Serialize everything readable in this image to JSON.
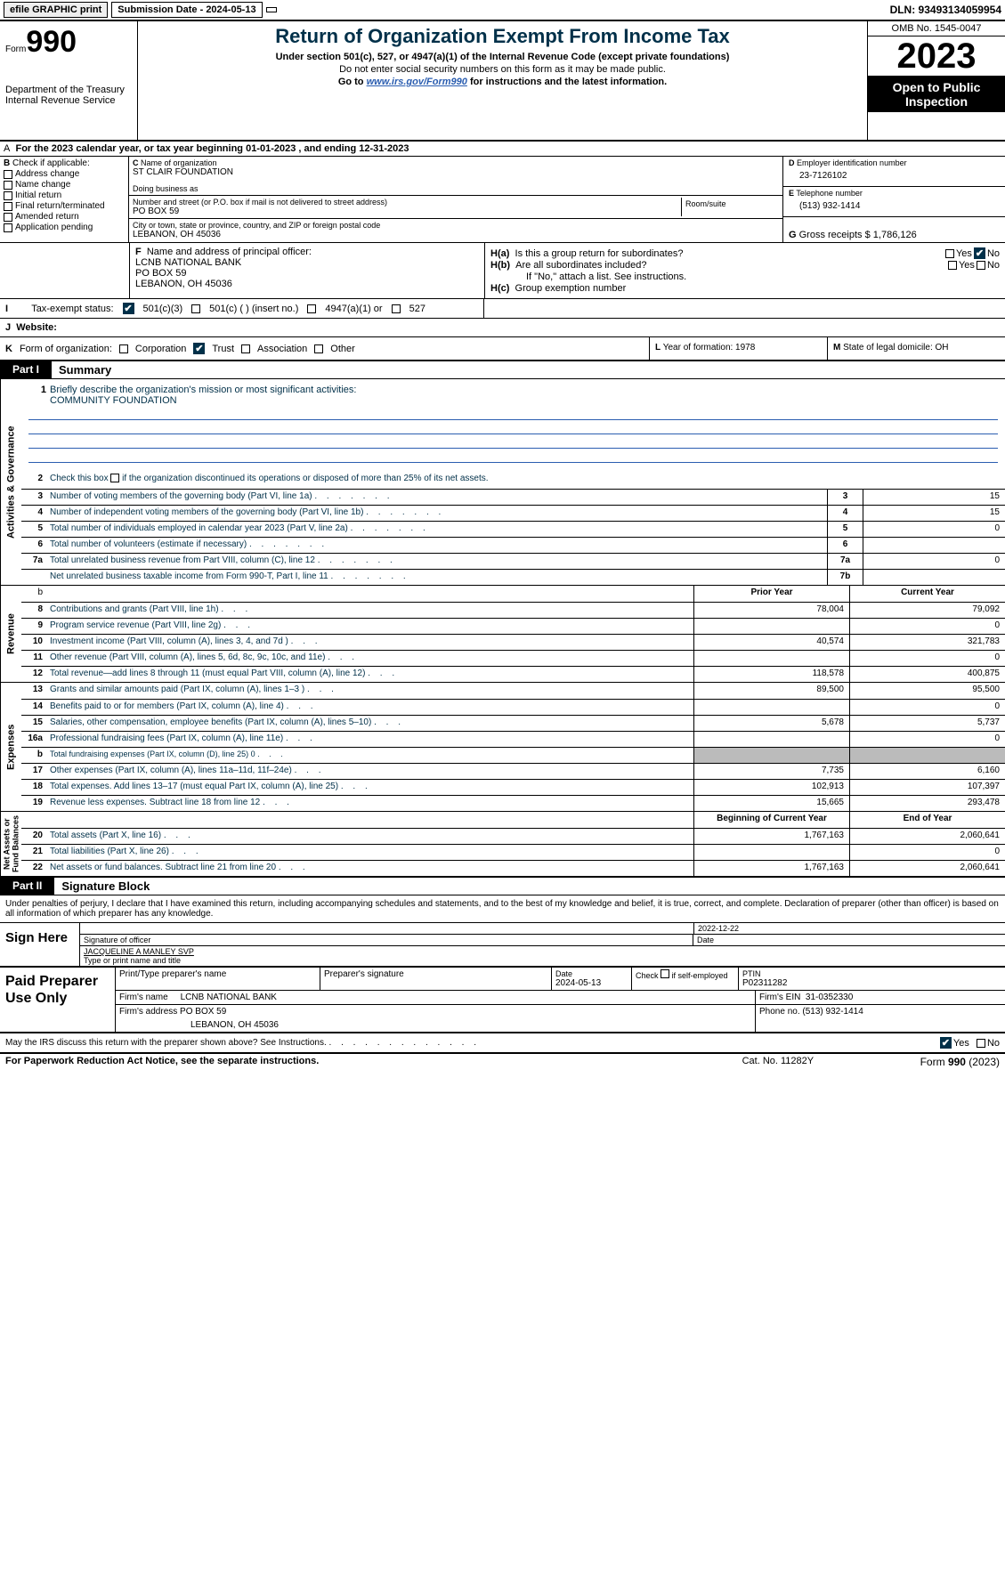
{
  "topbar": {
    "efile": "efile GRAPHIC print",
    "submission": "Submission Date - 2024-05-13",
    "dln": "DLN: 93493134059954"
  },
  "header": {
    "form_label": "Form",
    "form_num": "990",
    "dept": "Department of the Treasury\nInternal Revenue Service",
    "title": "Return of Organization Exempt From Income Tax",
    "sub1": "Under section 501(c), 527, or 4947(a)(1) of the Internal Revenue Code (except private foundations)",
    "sub2": "Do not enter social security numbers on this form as it may be made public.",
    "sub3_pre": "Go to ",
    "sub3_link": "www.irs.gov/Form990",
    "sub3_post": " for instructions and the latest information.",
    "omb": "OMB No. 1545-0047",
    "year": "2023",
    "open": "Open to Public Inspection"
  },
  "period": "For the 2023 calendar year, or tax year beginning 01-01-2023    , and ending 12-31-2023",
  "sectionB": {
    "title": "Check if applicable:",
    "items": [
      "Address change",
      "Name change",
      "Initial return",
      "Final return/terminated",
      "Amended return",
      "Application pending"
    ]
  },
  "sectionC": {
    "name_label": "Name of organization",
    "name": "ST CLAIR FOUNDATION",
    "dba_label": "Doing business as",
    "addr_label": "Number and street (or P.O. box if mail is not delivered to street address)",
    "addr": "PO BOX 59",
    "room_label": "Room/suite",
    "city_label": "City or town, state or province, country, and ZIP or foreign postal code",
    "city": "LEBANON, OH   45036"
  },
  "sectionD": {
    "ein_label": "Employer identification number",
    "ein": "23-7126102",
    "phone_label": "Telephone number",
    "phone": "(513) 932-1414",
    "gross_label": "Gross receipts $",
    "gross": "1,786,126"
  },
  "sectionF": {
    "label": "Name and address of principal officer:",
    "line1": "LCNB NATIONAL BANK",
    "line2": "PO BOX 59",
    "line3": "LEBANON, OH   45036"
  },
  "sectionH": {
    "a": "Is this a group return for subordinates?",
    "b": "Are all subordinates included?",
    "b_note": "If \"No,\" attach a list. See instructions.",
    "c": "Group exemption number"
  },
  "taxexempt": {
    "label": "Tax-exempt status:",
    "opts": [
      "501(c)(3)",
      "501(c) (  ) (insert no.)",
      "4947(a)(1) or",
      "527"
    ]
  },
  "website_label": "Website:",
  "rowK": {
    "label": "Form of organization:",
    "opts": [
      "Corporation",
      "Trust",
      "Association",
      "Other"
    ]
  },
  "rowL": "Year of formation: 1978",
  "rowM": "State of legal domicile: OH",
  "part1": {
    "tab": "Part I",
    "title": "Summary"
  },
  "mission": {
    "label": "Briefly describe the organization's mission or most significant activities:",
    "text": "COMMUNITY FOUNDATION"
  },
  "line2": "Check this box       if the organization discontinued its operations or disposed of more than 25% of its net assets.",
  "gov_rows": [
    {
      "n": "3",
      "d": "Number of voting members of the governing body (Part VI, line 1a)",
      "box": "3",
      "v": "15"
    },
    {
      "n": "4",
      "d": "Number of independent voting members of the governing body (Part VI, line 1b)",
      "box": "4",
      "v": "15"
    },
    {
      "n": "5",
      "d": "Total number of individuals employed in calendar year 2023 (Part V, line 2a)",
      "box": "5",
      "v": "0"
    },
    {
      "n": "6",
      "d": "Total number of volunteers (estimate if necessary)",
      "box": "6",
      "v": ""
    },
    {
      "n": "7a",
      "d": "Total unrelated business revenue from Part VIII, column (C), line 12",
      "box": "7a",
      "v": "0"
    },
    {
      "n": "",
      "d": "Net unrelated business taxable income from Form 990-T, Part I, line 11",
      "box": "7b",
      "v": ""
    }
  ],
  "py_hdr": "Prior Year",
  "cy_hdr": "Current Year",
  "rev_rows": [
    {
      "n": "8",
      "d": "Contributions and grants (Part VIII, line 1h)",
      "p": "78,004",
      "c": "79,092"
    },
    {
      "n": "9",
      "d": "Program service revenue (Part VIII, line 2g)",
      "p": "",
      "c": "0"
    },
    {
      "n": "10",
      "d": "Investment income (Part VIII, column (A), lines 3, 4, and 7d )",
      "p": "40,574",
      "c": "321,783"
    },
    {
      "n": "11",
      "d": "Other revenue (Part VIII, column (A), lines 5, 6d, 8c, 9c, 10c, and 11e)",
      "p": "",
      "c": "0"
    },
    {
      "n": "12",
      "d": "Total revenue—add lines 8 through 11 (must equal Part VIII, column (A), line 12)",
      "p": "118,578",
      "c": "400,875"
    }
  ],
  "exp_rows": [
    {
      "n": "13",
      "d": "Grants and similar amounts paid (Part IX, column (A), lines 1–3 )",
      "p": "89,500",
      "c": "95,500"
    },
    {
      "n": "14",
      "d": "Benefits paid to or for members (Part IX, column (A), line 4)",
      "p": "",
      "c": "0"
    },
    {
      "n": "15",
      "d": "Salaries, other compensation, employee benefits (Part IX, column (A), lines 5–10)",
      "p": "5,678",
      "c": "5,737"
    },
    {
      "n": "16a",
      "d": "Professional fundraising fees (Part IX, column (A), line 11e)",
      "p": "",
      "c": "0"
    },
    {
      "n": "b",
      "d": "Total fundraising expenses (Part IX, column (D), line 25) 0",
      "p": "SHADE",
      "c": "SHADE",
      "small": true
    },
    {
      "n": "17",
      "d": "Other expenses (Part IX, column (A), lines 11a–11d, 11f–24e)",
      "p": "7,735",
      "c": "6,160"
    },
    {
      "n": "18",
      "d": "Total expenses. Add lines 13–17 (must equal Part IX, column (A), line 25)",
      "p": "102,913",
      "c": "107,397"
    },
    {
      "n": "19",
      "d": "Revenue less expenses. Subtract line 18 from line 12",
      "p": "15,665",
      "c": "293,478"
    }
  ],
  "na_hdr_b": "Beginning of Current Year",
  "na_hdr_e": "End of Year",
  "na_rows": [
    {
      "n": "20",
      "d": "Total assets (Part X, line 16)",
      "p": "1,767,163",
      "c": "2,060,641"
    },
    {
      "n": "21",
      "d": "Total liabilities (Part X, line 26)",
      "p": "",
      "c": "0"
    },
    {
      "n": "22",
      "d": "Net assets or fund balances. Subtract line 21 from line 20",
      "p": "1,767,163",
      "c": "2,060,641"
    }
  ],
  "part2": {
    "tab": "Part II",
    "title": "Signature Block"
  },
  "sig_intro": "Under penalties of perjury, I declare that I have examined this return, including accompanying schedules and statements, and to the best of my knowledge and belief, it is true, correct, and complete. Declaration of preparer (other than officer) is based on all information of which preparer has any knowledge.",
  "sig": {
    "here": "Sign Here",
    "sig_label": "Signature of officer",
    "date_label": "Date",
    "date": "2022-12-22",
    "name": "JACQUELINE A MANLEY  SVP",
    "name_label": "Type or print name and title"
  },
  "prep": {
    "label": "Paid Preparer Use Only",
    "r1": {
      "c1": "Print/Type preparer's name",
      "c2": "Preparer's signature",
      "c3_l": "Date",
      "c3": "2024-05-13",
      "c4": "Check        if self-employed",
      "c5_l": "PTIN",
      "c5": "P02311282"
    },
    "r2": {
      "c1_l": "Firm's name",
      "c1": "LCNB NATIONAL BANK",
      "c2_l": "Firm's EIN",
      "c2": "31-0352330"
    },
    "r3": {
      "c1_l": "Firm's address",
      "c1": "PO BOX 59",
      "c1b": "LEBANON, OH   45036",
      "c2_l": "Phone no.",
      "c2": "(513) 932-1414"
    }
  },
  "discuss": "May the IRS discuss this return with the preparer shown above? See Instructions.",
  "footer": {
    "left": "For Paperwork Reduction Act Notice, see the separate instructions.",
    "mid": "Cat. No. 11282Y",
    "right_pre": "Form ",
    "right_b": "990",
    "right_post": " (2023)"
  },
  "vert": {
    "gov": "Activities & Governance",
    "rev": "Revenue",
    "exp": "Expenses",
    "na": "Net Assets or\nFund Balances"
  }
}
